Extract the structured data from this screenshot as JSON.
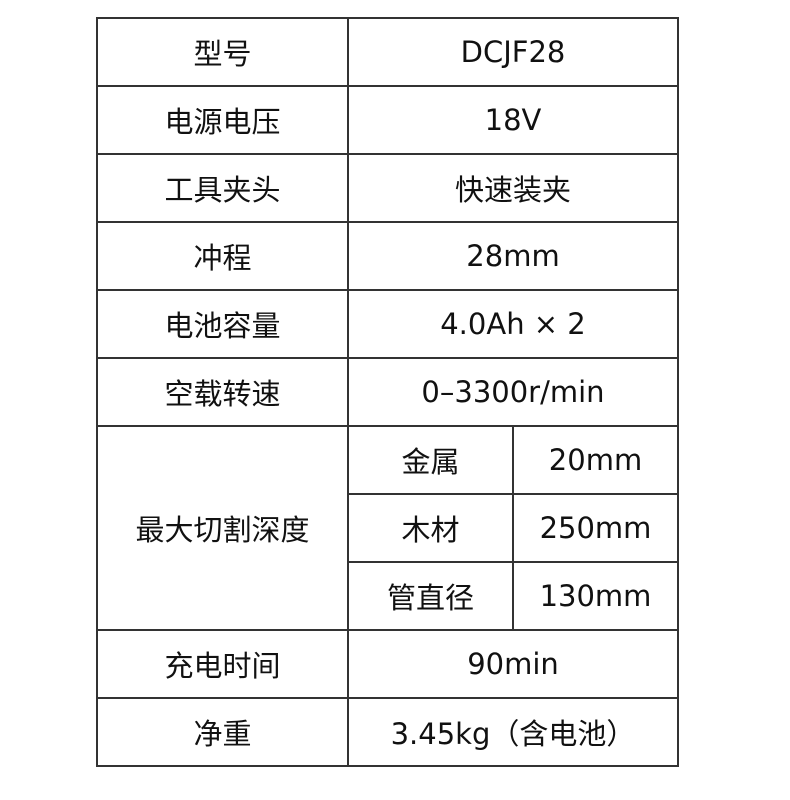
{
  "rows": [
    {
      "label": "型号",
      "value": "DCJF28"
    },
    {
      "label": "电源电压",
      "value": "18V"
    },
    {
      "label": "工具夹头",
      "value": "快速装夹"
    },
    {
      "label": "冲程",
      "value": "28mm"
    },
    {
      "label": "电池容量",
      "value": "4.0Ah × 2"
    },
    {
      "label": "空载转速",
      "value": "0–3300r/min"
    }
  ],
  "cutting_depth": {
    "label": "最大切割深度",
    "items": [
      {
        "material": "金属",
        "value": "20mm"
      },
      {
        "material": "木材",
        "value": "250mm"
      },
      {
        "material": "管直径",
        "value": "130mm"
      }
    ]
  },
  "rows_after": [
    {
      "label": "充电时间",
      "value": "90min"
    },
    {
      "label": "净重",
      "value": "3.45kg（含电池）"
    }
  ]
}
